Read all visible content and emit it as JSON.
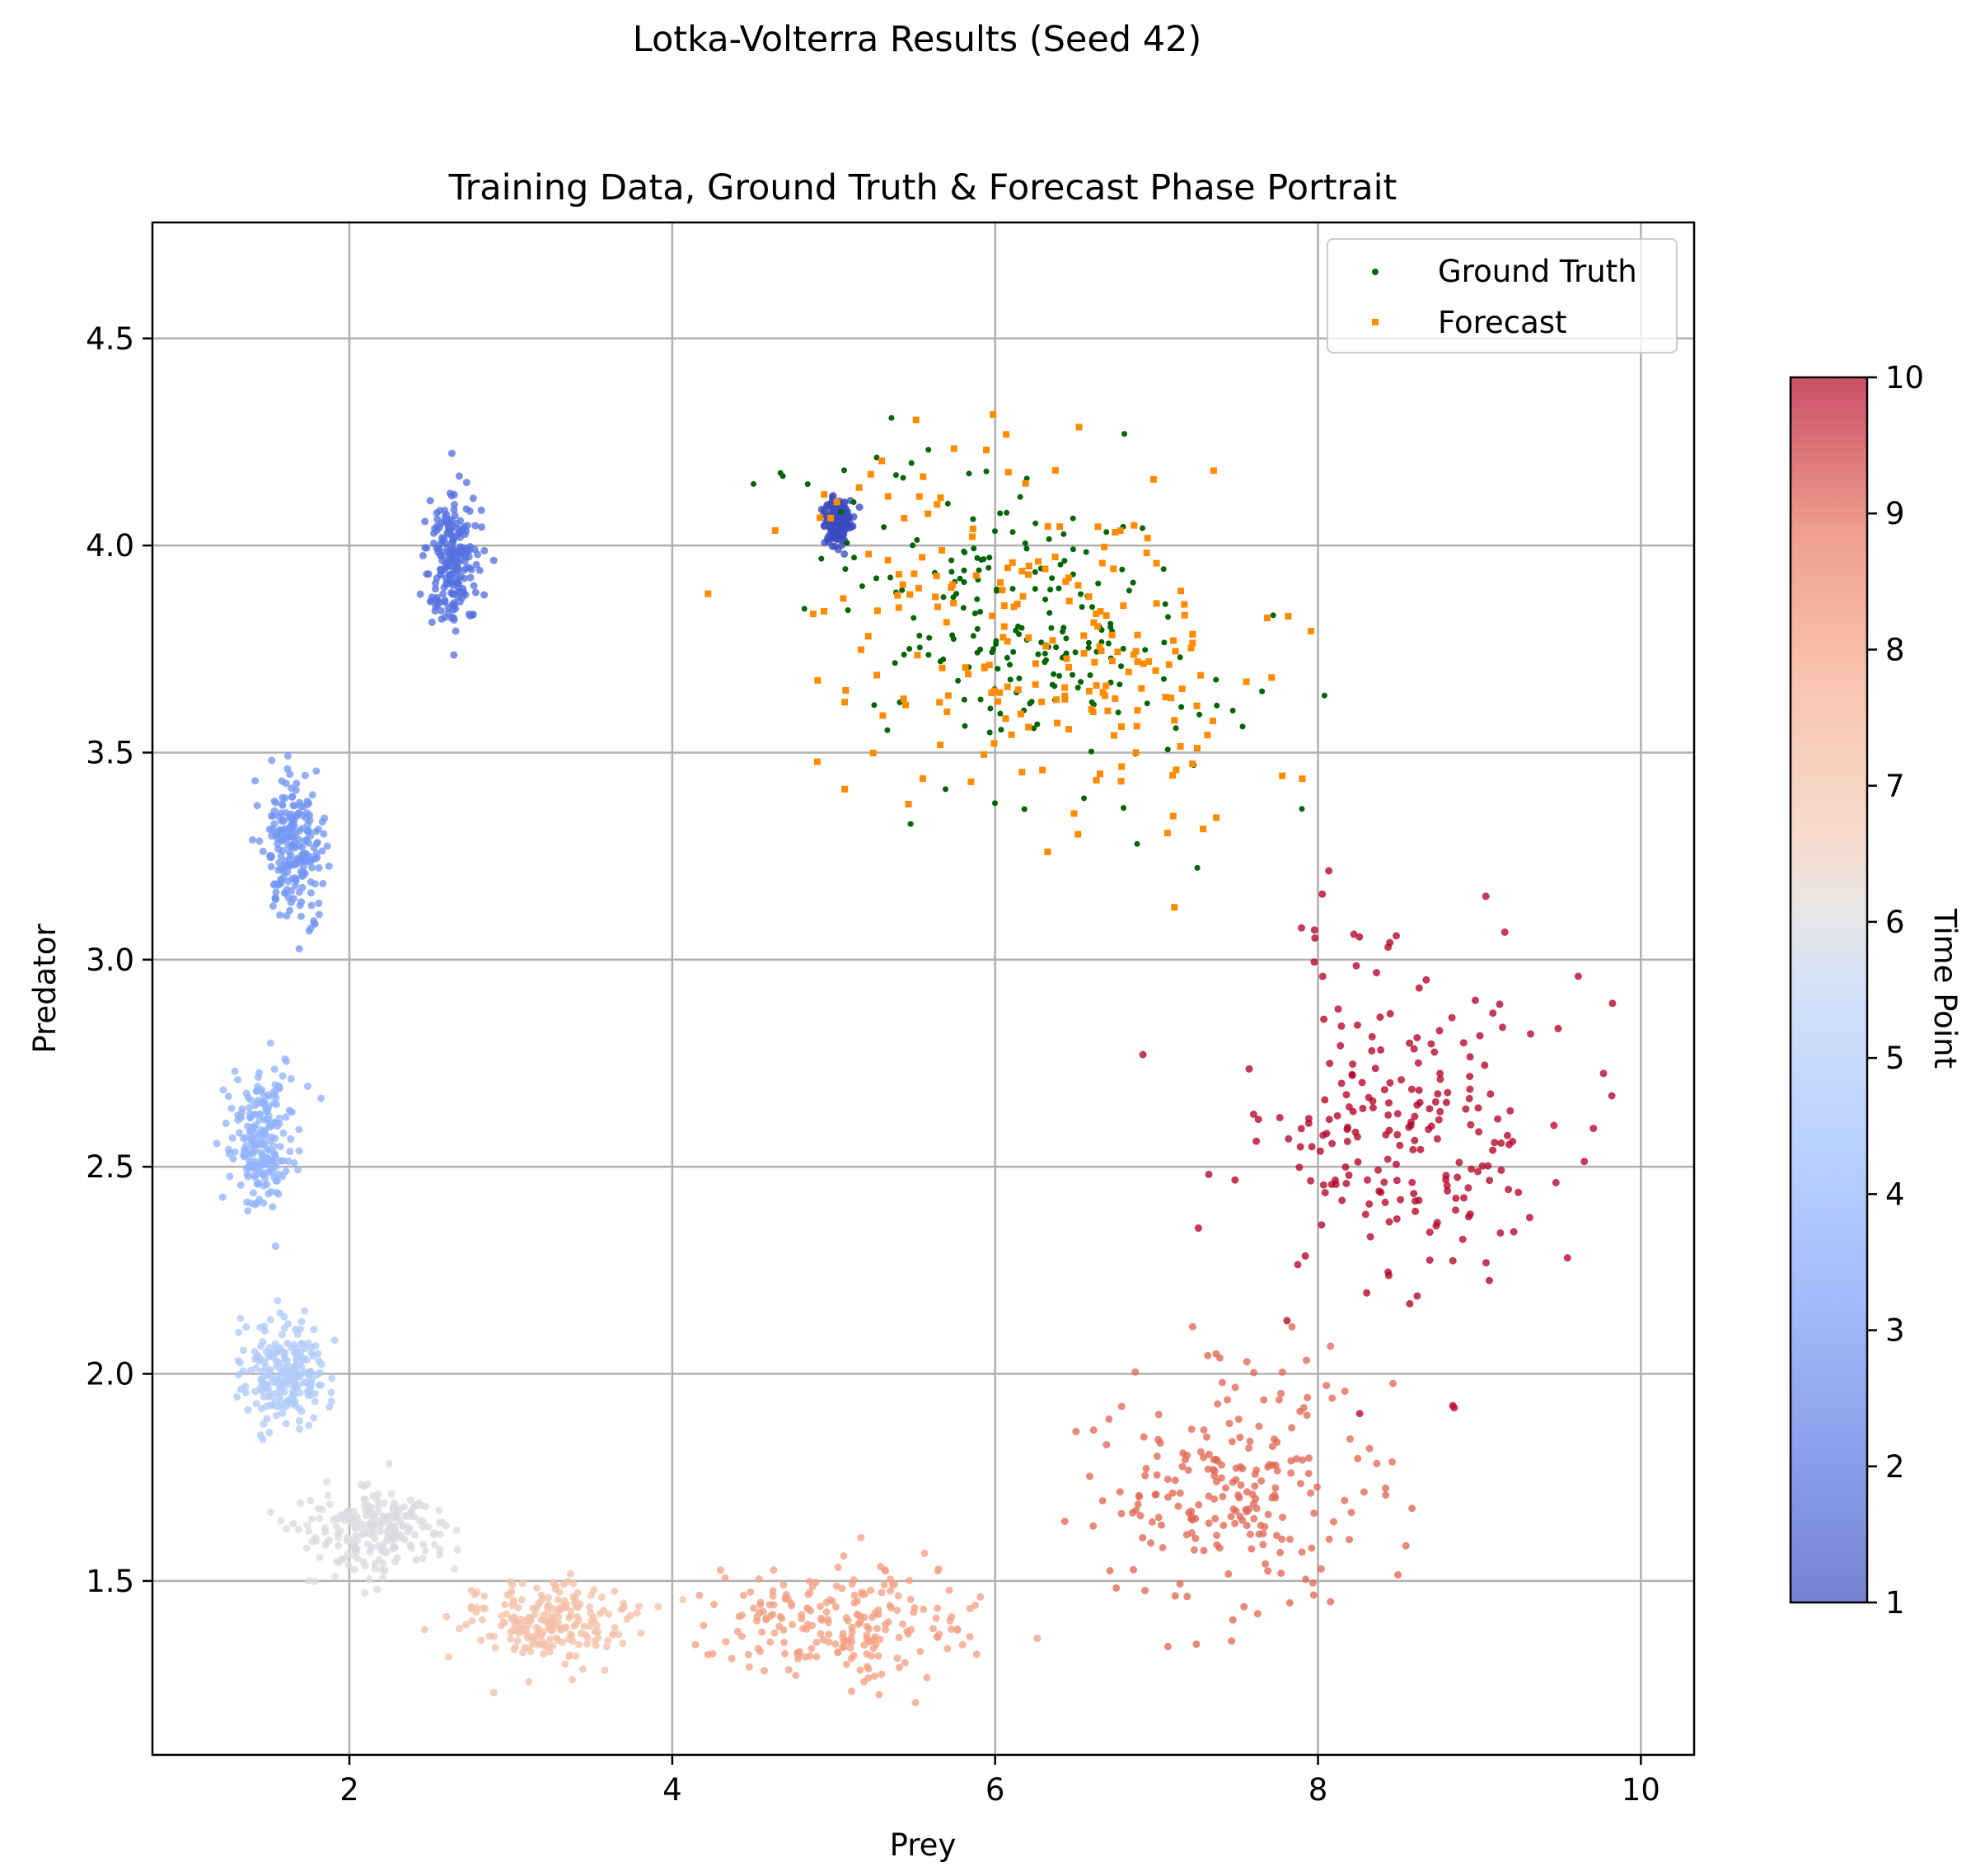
{
  "suptitle": "Lotka-Volterra Results (Seed 42)",
  "chart_data": {
    "type": "scatter",
    "title": "Training Data, Ground Truth & Forecast Phase Portrait",
    "xlabel": "Prey",
    "ylabel": "Predator",
    "xlim": [
      0.78,
      10.33
    ],
    "ylim": [
      1.08,
      4.78
    ],
    "xticks": [
      2,
      4,
      6,
      8,
      10
    ],
    "xtick_labels": [
      "2",
      "4",
      "6",
      "8",
      "10"
    ],
    "yticks": [
      1.5,
      2.0,
      2.5,
      3.0,
      3.5,
      4.0,
      4.5
    ],
    "ytick_labels": [
      "1.5",
      "2.0",
      "2.5",
      "3.0",
      "3.5",
      "4.0",
      "4.5"
    ],
    "grid": true,
    "legend": {
      "position": "upper right",
      "entries": [
        {
          "label": "Ground Truth",
          "color": "#006400",
          "marker": "circle"
        },
        {
          "label": "Forecast",
          "color": "#ff8c00",
          "marker": "square"
        }
      ]
    },
    "colorbar": {
      "label": "Time Point",
      "colormap": "coolwarm",
      "range": [
        1,
        10
      ],
      "ticks": [
        1,
        2,
        3,
        4,
        5,
        6,
        7,
        8,
        9,
        10
      ],
      "tick_labels": [
        "1",
        "2",
        "3",
        "4",
        "5",
        "6",
        "7",
        "8",
        "9",
        "10"
      ]
    },
    "training_clusters": [
      {
        "time_point": 1,
        "center": [
          5.02,
          4.06
        ],
        "spread": [
          0.04,
          0.03
        ],
        "points": 200
      },
      {
        "time_point": 2,
        "center": [
          2.65,
          3.96
        ],
        "spread": [
          0.08,
          0.09
        ],
        "points": 220
      },
      {
        "time_point": 3,
        "center": [
          1.65,
          3.27
        ],
        "spread": [
          0.1,
          0.09
        ],
        "points": 220
      },
      {
        "time_point": 4,
        "center": [
          1.45,
          2.57
        ],
        "spread": [
          0.1,
          0.08
        ],
        "points": 220
      },
      {
        "time_point": 5,
        "center": [
          1.6,
          2.0
        ],
        "spread": [
          0.13,
          0.06
        ],
        "points": 220
      },
      {
        "time_point": 6,
        "center": [
          2.15,
          1.62
        ],
        "spread": [
          0.22,
          0.05
        ],
        "points": 220
      },
      {
        "time_point": 7,
        "center": [
          3.25,
          1.4
        ],
        "spread": [
          0.25,
          0.05
        ],
        "points": 220
      },
      {
        "time_point": 8,
        "center": [
          5.0,
          1.4
        ],
        "spread": [
          0.4,
          0.07
        ],
        "points": 220
      },
      {
        "time_point": 9,
        "center": [
          7.45,
          1.72
        ],
        "spread": [
          0.45,
          0.15
        ],
        "points": 220
      },
      {
        "time_point": 10,
        "center": [
          8.5,
          2.6
        ],
        "spread": [
          0.5,
          0.23
        ],
        "points": 220
      }
    ],
    "series": [
      {
        "name": "Ground Truth",
        "color": "#006400",
        "center": [
          6.2,
          3.8
        ],
        "spread": [
          0.6,
          0.18
        ],
        "points": 220
      },
      {
        "name": "Forecast",
        "color": "#ff8c00",
        "center": [
          6.3,
          3.78
        ],
        "spread": [
          0.75,
          0.22
        ],
        "points": 220
      }
    ]
  }
}
